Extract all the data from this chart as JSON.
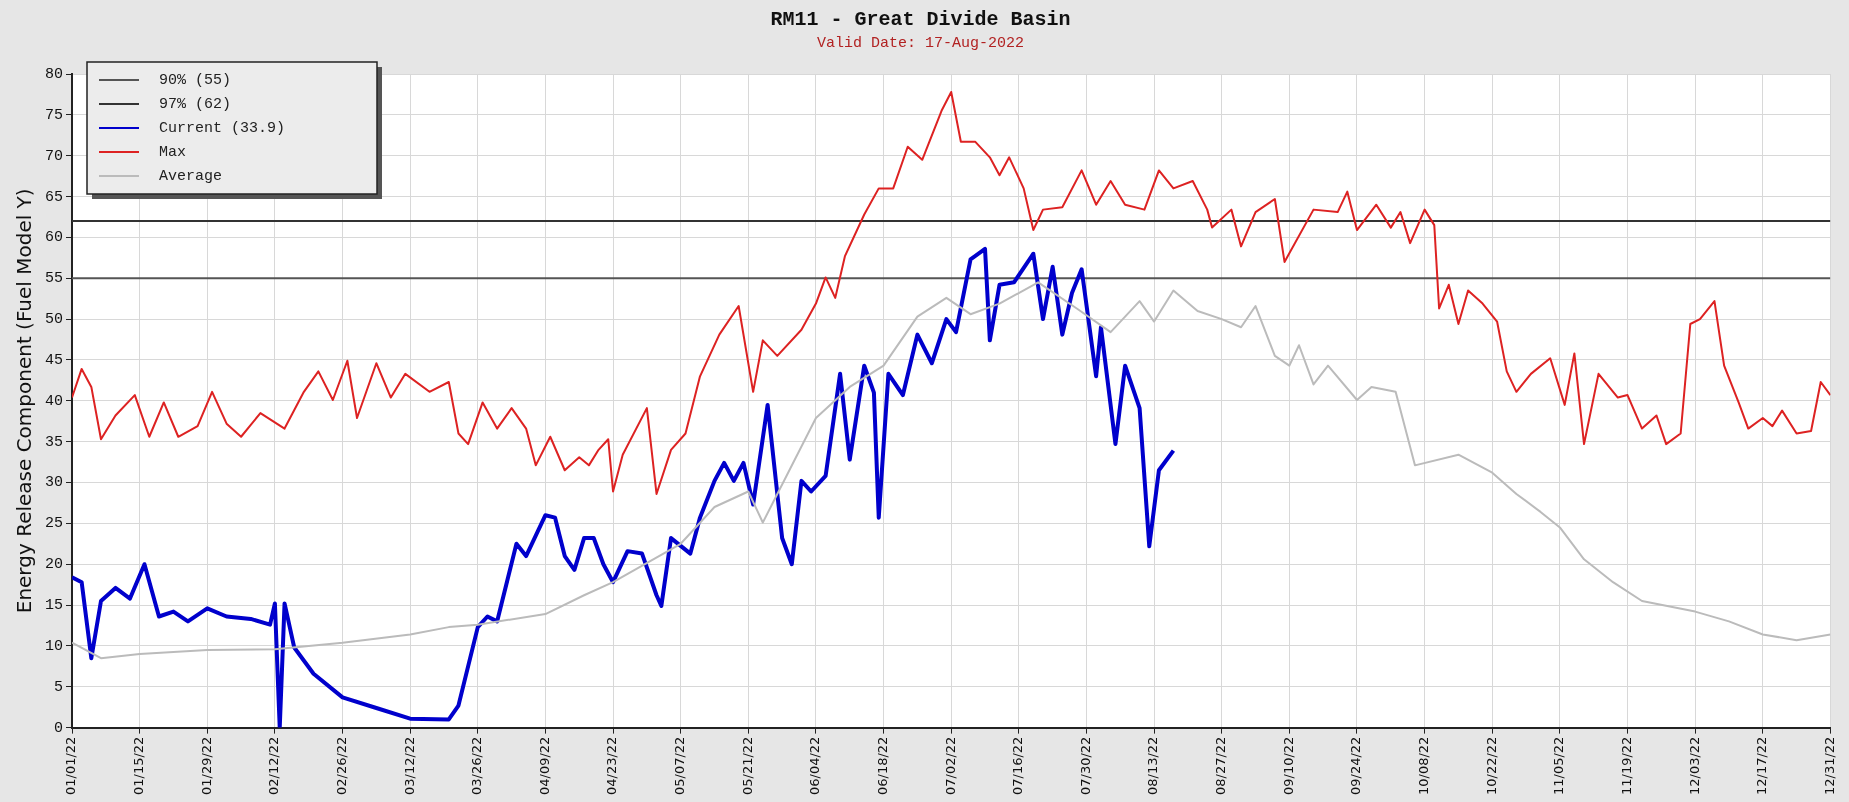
{
  "chart_data": {
    "type": "line",
    "title": "RM11 - Great Divide Basin",
    "subtitle": "Valid Date: 17-Aug-2022",
    "ylabel": "Energy Release Component (Fuel Model Y)",
    "xlim": [
      "2022-01-01",
      "2022-12-31"
    ],
    "xticks": [
      {
        "value": "2022-01-01",
        "label": "01/01/22"
      },
      {
        "value": "2022-01-15",
        "label": "01/15/22"
      },
      {
        "value": "2022-01-29",
        "label": "01/29/22"
      },
      {
        "value": "2022-02-12",
        "label": "02/12/22"
      },
      {
        "value": "2022-02-26",
        "label": "02/26/22"
      },
      {
        "value": "2022-03-12",
        "label": "03/12/22"
      },
      {
        "value": "2022-03-26",
        "label": "03/26/22"
      },
      {
        "value": "2022-04-09",
        "label": "04/09/22"
      },
      {
        "value": "2022-04-23",
        "label": "04/23/22"
      },
      {
        "value": "2022-05-07",
        "label": "05/07/22"
      },
      {
        "value": "2022-05-21",
        "label": "05/21/22"
      },
      {
        "value": "2022-06-04",
        "label": "06/04/22"
      },
      {
        "value": "2022-06-18",
        "label": "06/18/22"
      },
      {
        "value": "2022-07-02",
        "label": "07/02/22"
      },
      {
        "value": "2022-07-16",
        "label": "07/16/22"
      },
      {
        "value": "2022-07-30",
        "label": "07/30/22"
      },
      {
        "value": "2022-08-13",
        "label": "08/13/22"
      },
      {
        "value": "2022-08-27",
        "label": "08/27/22"
      },
      {
        "value": "2022-09-10",
        "label": "09/10/22"
      },
      {
        "value": "2022-09-24",
        "label": "09/24/22"
      },
      {
        "value": "2022-10-08",
        "label": "10/08/22"
      },
      {
        "value": "2022-10-22",
        "label": "10/22/22"
      },
      {
        "value": "2022-11-05",
        "label": "11/05/22"
      },
      {
        "value": "2022-11-19",
        "label": "11/19/22"
      },
      {
        "value": "2022-12-03",
        "label": "12/03/22"
      },
      {
        "value": "2022-12-17",
        "label": "12/17/22"
      },
      {
        "value": "2022-12-31",
        "label": "12/31/22"
      }
    ],
    "ylim": [
      0,
      80
    ],
    "yticks": [
      0,
      5,
      10,
      15,
      20,
      25,
      30,
      35,
      40,
      45,
      50,
      55,
      60,
      65,
      70,
      75,
      80
    ],
    "grid": true,
    "legend": "top left",
    "marker": "none",
    "line_style": "solid",
    "ref_lines": [
      {
        "axis": "y",
        "value": 55,
        "label": "90% (55)",
        "color": "#555555"
      },
      {
        "axis": "y",
        "value": 62,
        "label": "97% (62)",
        "color": "#333333"
      }
    ],
    "series": [
      {
        "name": "Current (33.9)",
        "color": "#0000cc",
        "x": [
          "2022-01-01",
          "2022-01-03",
          "2022-01-05",
          "2022-01-07",
          "2022-01-10",
          "2022-01-13",
          "2022-01-16",
          "2022-01-19",
          "2022-01-22",
          "2022-01-25",
          "2022-01-29",
          "2022-02-02",
          "2022-02-07",
          "2022-02-11",
          "2022-02-12",
          "2022-02-13",
          "2022-02-14",
          "2022-02-16",
          "2022-02-20",
          "2022-02-26",
          "2022-03-05",
          "2022-03-12",
          "2022-03-20",
          "2022-03-22",
          "2022-03-26",
          "2022-03-28",
          "2022-03-30",
          "2022-04-03",
          "2022-04-05",
          "2022-04-09",
          "2022-04-11",
          "2022-04-13",
          "2022-04-15",
          "2022-04-17",
          "2022-04-19",
          "2022-04-21",
          "2022-04-23",
          "2022-04-26",
          "2022-04-29",
          "2022-05-02",
          "2022-05-03",
          "2022-05-05",
          "2022-05-09",
          "2022-05-11",
          "2022-05-14",
          "2022-05-16",
          "2022-05-18",
          "2022-05-20",
          "2022-05-22",
          "2022-05-25",
          "2022-05-28",
          "2022-05-30",
          "2022-06-01",
          "2022-06-03",
          "2022-06-06",
          "2022-06-09",
          "2022-06-11",
          "2022-06-14",
          "2022-06-16",
          "2022-06-17",
          "2022-06-19",
          "2022-06-22",
          "2022-06-25",
          "2022-06-28",
          "2022-07-01",
          "2022-07-03",
          "2022-07-06",
          "2022-07-09",
          "2022-07-10",
          "2022-07-12",
          "2022-07-15",
          "2022-07-19",
          "2022-07-21",
          "2022-07-23",
          "2022-07-25",
          "2022-07-27",
          "2022-07-29",
          "2022-08-01",
          "2022-08-02",
          "2022-08-05",
          "2022-08-07",
          "2022-08-10",
          "2022-08-12",
          "2022-08-14",
          "2022-08-17"
        ],
        "values": [
          18.4,
          17.8,
          8.5,
          15.5,
          17.1,
          15.8,
          20,
          13.6,
          14.2,
          13,
          14.6,
          13.6,
          13.3,
          12.6,
          15.2,
          0,
          15.2,
          9.8,
          6.6,
          3.7,
          2.4,
          1.1,
          1,
          2.7,
          12.3,
          13.6,
          13,
          22.5,
          21,
          26,
          25.7,
          21,
          19.3,
          23.2,
          23.2,
          20,
          17.8,
          21.6,
          21.3,
          16.2,
          14.9,
          23.2,
          21.3,
          25.7,
          30.2,
          32.4,
          30.2,
          32.4,
          27.3,
          39.5,
          23.2,
          20,
          30.2,
          28.9,
          30.8,
          43.3,
          32.8,
          44.3,
          41,
          25.7,
          43.3,
          40.7,
          48.1,
          44.6,
          50,
          48.4,
          57.3,
          58.6,
          47.4,
          54.2,
          54.5,
          58,
          50,
          56.4,
          48.1,
          53.2,
          56.1,
          43,
          49,
          34.7,
          44.3,
          39.1,
          22.2,
          31.5,
          33.9
        ]
      },
      {
        "name": "Max",
        "color": "#dd2222",
        "x": [
          "2022-01-01",
          "2022-01-03",
          "2022-01-05",
          "2022-01-07",
          "2022-01-10",
          "2022-01-14",
          "2022-01-17",
          "2022-01-20",
          "2022-01-23",
          "2022-01-27",
          "2022-01-30",
          "2022-02-02",
          "2022-02-05",
          "2022-02-09",
          "2022-02-14",
          "2022-02-18",
          "2022-02-21",
          "2022-02-24",
          "2022-02-27",
          "2022-03-01",
          "2022-03-05",
          "2022-03-08",
          "2022-03-11",
          "2022-03-16",
          "2022-03-20",
          "2022-03-22",
          "2022-03-24",
          "2022-03-27",
          "2022-03-30",
          "2022-04-02",
          "2022-04-05",
          "2022-04-07",
          "2022-04-10",
          "2022-04-13",
          "2022-04-16",
          "2022-04-18",
          "2022-04-20",
          "2022-04-22",
          "2022-04-23",
          "2022-04-25",
          "2022-04-30",
          "2022-05-02",
          "2022-05-05",
          "2022-05-08",
          "2022-05-11",
          "2022-05-15",
          "2022-05-19",
          "2022-05-22",
          "2022-05-24",
          "2022-05-27",
          "2022-06-01",
          "2022-06-04",
          "2022-06-06",
          "2022-06-08",
          "2022-06-10",
          "2022-06-14",
          "2022-06-17",
          "2022-06-20",
          "2022-06-23",
          "2022-06-26",
          "2022-06-30",
          "2022-07-02",
          "2022-07-04",
          "2022-07-07",
          "2022-07-10",
          "2022-07-12",
          "2022-07-14",
          "2022-07-17",
          "2022-07-19",
          "2022-07-21",
          "2022-07-25",
          "2022-07-29",
          "2022-08-01",
          "2022-08-04",
          "2022-08-07",
          "2022-08-11",
          "2022-08-14",
          "2022-08-17",
          "2022-08-21",
          "2022-08-24",
          "2022-08-25",
          "2022-08-29",
          "2022-08-31",
          "2022-09-03",
          "2022-09-07",
          "2022-09-09",
          "2022-09-15",
          "2022-09-20",
          "2022-09-22",
          "2022-09-24",
          "2022-09-28",
          "2022-10-01",
          "2022-10-03",
          "2022-10-05",
          "2022-10-08",
          "2022-10-10",
          "2022-10-11",
          "2022-10-13",
          "2022-10-15",
          "2022-10-17",
          "2022-10-20",
          "2022-10-23",
          "2022-10-25",
          "2022-10-27",
          "2022-10-30",
          "2022-11-03",
          "2022-11-06",
          "2022-11-08",
          "2022-11-10",
          "2022-11-13",
          "2022-11-17",
          "2022-11-19",
          "2022-11-22",
          "2022-11-25",
          "2022-11-27",
          "2022-11-30",
          "2022-12-02",
          "2022-12-04",
          "2022-12-07",
          "2022-12-09",
          "2022-12-12",
          "2022-12-14",
          "2022-12-17",
          "2022-12-19",
          "2022-12-21",
          "2022-12-24",
          "2022-12-27",
          "2022-12-29",
          "2022-12-31"
        ],
        "values": [
          40.4,
          43.9,
          41.7,
          35.3,
          38.2,
          40.7,
          35.6,
          39.8,
          35.6,
          36.9,
          41.1,
          37.2,
          35.6,
          38.5,
          36.6,
          41.1,
          43.6,
          40.1,
          44.9,
          37.9,
          44.6,
          40.4,
          43.3,
          41.1,
          42.3,
          36,
          34.7,
          39.8,
          36.6,
          39.1,
          36.6,
          32.1,
          35.6,
          31.5,
          33.1,
          32.1,
          34,
          35.3,
          28.9,
          33.4,
          39.1,
          28.6,
          34,
          36,
          43,
          48.1,
          51.6,
          41.1,
          47.4,
          45.5,
          48.7,
          51.9,
          55.1,
          52.6,
          57.7,
          62.8,
          66,
          66,
          71.1,
          69.5,
          75.5,
          77.8,
          71.7,
          71.7,
          69.8,
          67.6,
          69.8,
          66,
          60.9,
          63.4,
          63.7,
          68.2,
          64,
          66.9,
          64,
          63.4,
          68.2,
          66,
          66.9,
          63.4,
          61.2,
          63.4,
          58.9,
          63.1,
          64.7,
          57,
          63.4,
          63.1,
          65.6,
          60.9,
          64,
          61.2,
          63.1,
          59.3,
          63.4,
          61.5,
          51.3,
          54.2,
          49.4,
          53.5,
          51.9,
          49.7,
          43.6,
          41.1,
          43.3,
          45.2,
          39.5,
          45.8,
          34.7,
          43.3,
          40.4,
          40.7,
          36.6,
          38.2,
          34.7,
          36,
          49.4,
          50,
          52.2,
          44.3,
          39.8,
          36.6,
          37.9,
          36.9,
          38.8,
          36,
          36.3,
          42.3,
          40.7
        ]
      },
      {
        "name": "Average",
        "color": "#bbbbbb",
        "x": [
          "2022-01-01",
          "2022-01-07",
          "2022-01-15",
          "2022-01-29",
          "2022-02-12",
          "2022-02-26",
          "2022-03-12",
          "2022-03-20",
          "2022-03-26",
          "2022-04-09",
          "2022-04-17",
          "2022-04-23",
          "2022-05-07",
          "2022-05-14",
          "2022-05-21",
          "2022-05-24",
          "2022-06-04",
          "2022-06-11",
          "2022-06-18",
          "2022-06-25",
          "2022-07-01",
          "2022-07-06",
          "2022-07-12",
          "2022-07-20",
          "2022-07-28",
          "2022-08-04",
          "2022-08-10",
          "2022-08-13",
          "2022-08-17",
          "2022-08-22",
          "2022-08-27",
          "2022-08-31",
          "2022-09-03",
          "2022-09-07",
          "2022-09-10",
          "2022-09-12",
          "2022-09-15",
          "2022-09-18",
          "2022-09-24",
          "2022-09-27",
          "2022-10-02",
          "2022-10-06",
          "2022-10-15",
          "2022-10-22",
          "2022-10-27",
          "2022-11-01",
          "2022-11-05",
          "2022-11-10",
          "2022-11-16",
          "2022-11-22",
          "2022-12-03",
          "2022-12-10",
          "2022-12-17",
          "2022-12-24",
          "2022-12-31"
        ],
        "values": [
          10.4,
          8.5,
          9,
          9.5,
          9.6,
          10.4,
          11.4,
          12.3,
          12.6,
          13.9,
          16.2,
          17.8,
          22.5,
          27,
          28.9,
          25.1,
          37.9,
          41.7,
          44.3,
          50.3,
          52.6,
          50.6,
          51.9,
          54.5,
          51.3,
          48.4,
          52.2,
          49.7,
          53.5,
          51,
          50,
          49,
          51.6,
          45.5,
          44.3,
          46.8,
          42,
          44.3,
          40.1,
          41.7,
          41.1,
          32.1,
          33.4,
          31.2,
          28.6,
          26.4,
          24.5,
          20.6,
          17.8,
          15.5,
          14.2,
          13,
          11.4,
          10.7,
          11.4
        ]
      }
    ]
  }
}
